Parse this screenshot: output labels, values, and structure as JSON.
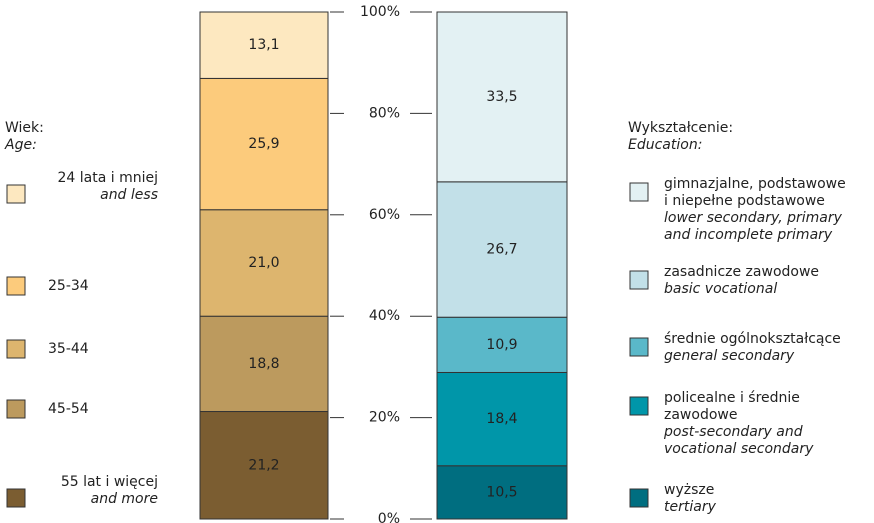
{
  "chart_data": {
    "type": "stacked-bar",
    "ylim": [
      0,
      100
    ],
    "yticks": [
      {
        "value": 0,
        "label": "0%"
      },
      {
        "value": 20,
        "label": "20%"
      },
      {
        "value": 40,
        "label": "40%"
      },
      {
        "value": 60,
        "label": "60%"
      },
      {
        "value": 80,
        "label": "80%"
      },
      {
        "value": 100,
        "label": "100%"
      }
    ],
    "groups": [
      {
        "legend_title": "Wiek:",
        "legend_title_en": "Age:",
        "series": [
          {
            "name": [
              "55 lat i więcej"
            ],
            "name_en": [
              "and more"
            ],
            "color": "#7b5d31",
            "values": [
              21.2
            ],
            "value_labels": [
              "21,2"
            ]
          },
          {
            "name": [
              "45-54"
            ],
            "name_en": [],
            "color": "#bc9a5e",
            "values": [
              18.8
            ],
            "value_labels": [
              "18,8"
            ]
          },
          {
            "name": [
              "35-44"
            ],
            "name_en": [],
            "color": "#ddb56e",
            "values": [
              21.0
            ],
            "value_labels": [
              "21,0"
            ]
          },
          {
            "name": [
              "25-34"
            ],
            "name_en": [],
            "color": "#fccb7c",
            "values": [
              25.9
            ],
            "value_labels": [
              "25,9"
            ]
          },
          {
            "name": [
              "24 lata i mniej"
            ],
            "name_en": [
              "and less"
            ],
            "color": "#fde8c0",
            "values": [
              13.1
            ],
            "value_labels": [
              "13,1"
            ]
          }
        ]
      },
      {
        "legend_title": "Wykształcenie:",
        "legend_title_en": "Education:",
        "series": [
          {
            "name": [
              "wyższe"
            ],
            "name_en": [
              "tertiary"
            ],
            "color": "#006e80",
            "values": [
              10.5
            ],
            "value_labels": [
              "10,5"
            ]
          },
          {
            "name": [
              "policealne i średnie",
              "zawodowe"
            ],
            "name_en": [
              "post-secondary and",
              "vocational secondary"
            ],
            "color": "#0096a9",
            "values": [
              18.4
            ],
            "value_labels": [
              "18,4"
            ]
          },
          {
            "name": [
              "średnie ogólnokształcące"
            ],
            "name_en": [
              "general secondary"
            ],
            "color": "#5ab8c9",
            "values": [
              10.9
            ],
            "value_labels": [
              "10,9"
            ]
          },
          {
            "name": [
              "zasadnicze zawodowe"
            ],
            "name_en": [
              "basic vocational"
            ],
            "color": "#c2e0e8",
            "values": [
              26.7
            ],
            "value_labels": [
              "26,7"
            ]
          },
          {
            "name": [
              "gimnazjalne, podstawowe",
              "i niepełne podstawowe"
            ],
            "name_en": [
              "lower secondary, primary",
              "and incomplete primary"
            ],
            "color": "#e3f1f3",
            "values": [
              33.5
            ],
            "value_labels": [
              "33,5"
            ]
          }
        ]
      }
    ]
  }
}
